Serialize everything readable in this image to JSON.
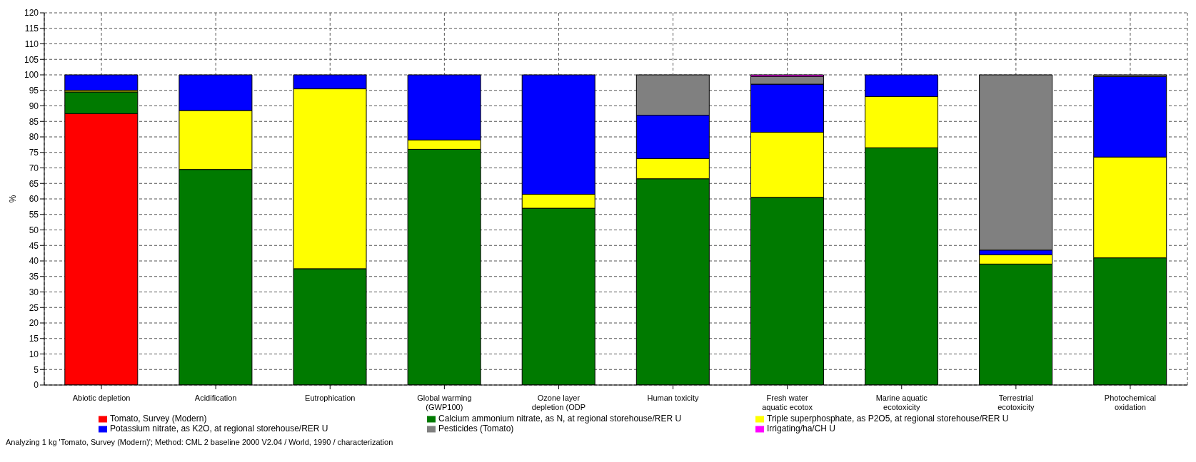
{
  "chart_data": {
    "type": "bar",
    "stacked": true,
    "ylabel": "%",
    "categories": [
      "Abiotic depletion",
      "Acidification",
      "Eutrophication",
      "Global warming\n(GWP100)",
      "Ozone layer\ndepletion (ODP",
      "Human toxicity",
      "Fresh water\naquatic ecotox",
      "Marine aquatic\necotoxicity",
      "Terrestrial\necotoxicity",
      "Photochemical\noxidation"
    ],
    "series": [
      {
        "name": "Tomato, Survey (Modern)",
        "color": "#ff0000",
        "values": [
          87.5,
          0,
          0,
          0,
          0,
          0,
          0,
          0,
          0,
          0
        ]
      },
      {
        "name": "Calcium ammonium nitrate, as N, at regional storehouse/RER U",
        "color": "#007a00",
        "values": [
          7,
          69.5,
          37.5,
          76,
          57,
          66.5,
          60.5,
          76.5,
          39,
          41
        ]
      },
      {
        "name": "Triple superphosphate, as P2O5, at regional storehouse/RER U",
        "color": "#ffff00",
        "values": [
          0.5,
          19,
          58,
          3,
          4.5,
          6.5,
          21,
          16.5,
          3,
          32.5
        ]
      },
      {
        "name": "Potassium nitrate, as K2O, at regional storehouse/RER U",
        "color": "#0000ff",
        "values": [
          5,
          11.5,
          4.5,
          21,
          38.5,
          14,
          15.5,
          7,
          1.5,
          26
        ]
      },
      {
        "name": "Pesticides (Tomato)",
        "color": "#808080",
        "values": [
          0,
          0,
          0,
          0,
          0,
          13,
          2.5,
          0,
          56.5,
          0.5
        ]
      },
      {
        "name": "Irrigating/ha/CH U",
        "color": "#ff00ff",
        "values": [
          0,
          0,
          0,
          0,
          0,
          0,
          0.5,
          0,
          0,
          0
        ]
      }
    ],
    "ylim": [
      0,
      120
    ],
    "yticks": [
      0,
      5,
      10,
      15,
      20,
      25,
      30,
      35,
      40,
      45,
      50,
      55,
      60,
      65,
      70,
      75,
      80,
      85,
      90,
      95,
      100,
      105,
      110,
      115,
      120
    ],
    "grid": true,
    "legend": "bottom",
    "annotations": [
      "Analyzing 1 kg 'Tomato, Survey (Modern)';  Method: CML 2 baseline 2000 V2.04 /  World, 1990 / characterization"
    ]
  }
}
